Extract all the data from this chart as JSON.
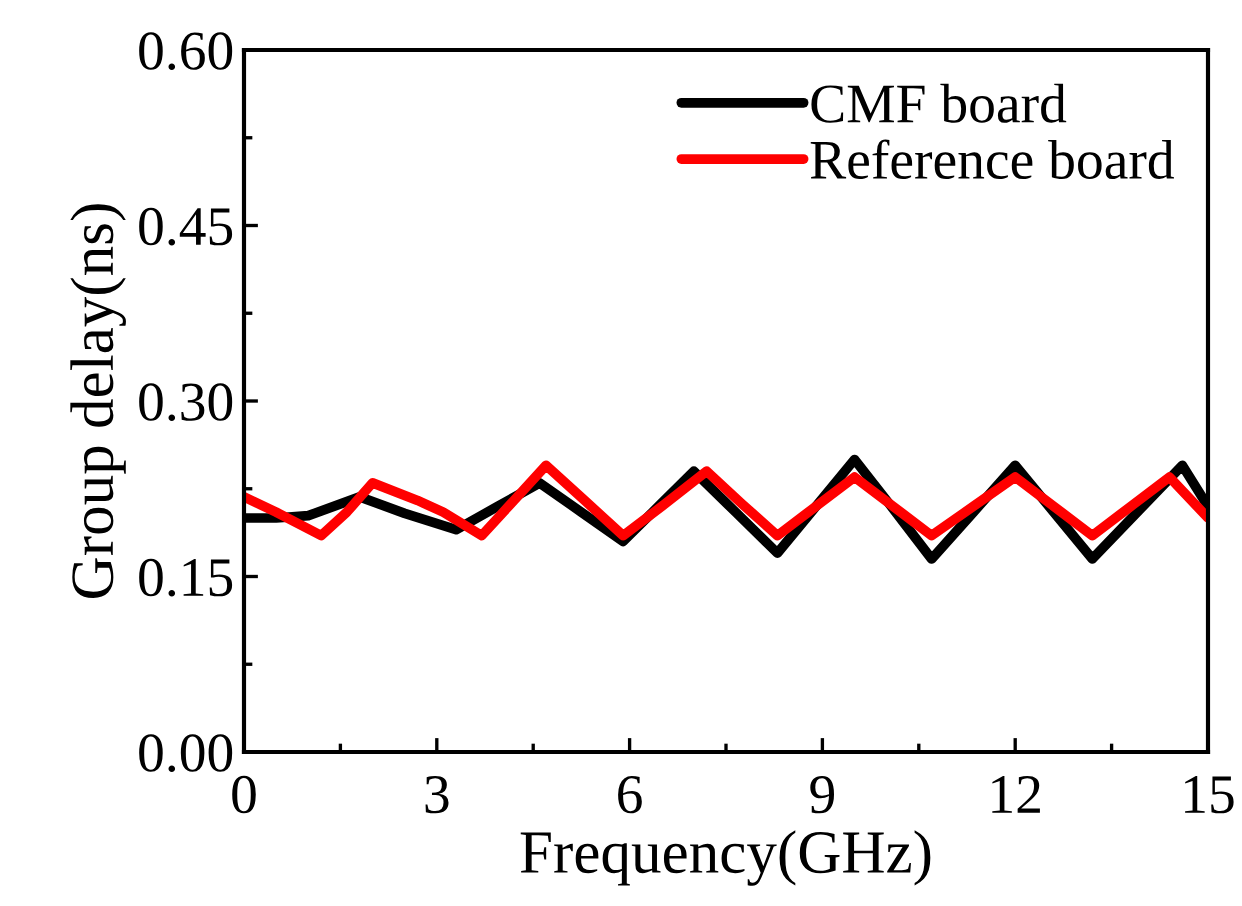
{
  "chart_data": {
    "type": "line",
    "xlabel": "Frequency(GHz)",
    "ylabel": "Group delay(ns)",
    "xlim": [
      0,
      15
    ],
    "xticks": [
      0,
      3,
      6,
      9,
      12,
      15
    ],
    "ylim": [
      0,
      0.6
    ],
    "yticks": [
      {
        "value": 0,
        "label": "0.00"
      },
      {
        "value": 0.15,
        "label": "0.15"
      },
      {
        "value": 0.3,
        "label": "0.30"
      },
      {
        "value": 0.45,
        "label": "0.45"
      },
      {
        "value": 0.6,
        "label": "0.60"
      }
    ],
    "grid": false,
    "legend": "top right",
    "marker": "none",
    "line_style": "solid",
    "series": [
      {
        "name": "CMF board",
        "color": "#000000",
        "x": [
          0,
          0.5,
          1,
          1.8,
          2.5,
          3.3,
          3.95,
          4.6,
          5.25,
          5.9,
          6.45,
          7.0,
          7.65,
          8.3,
          8.9,
          9.5,
          10.1,
          10.7,
          11.35,
          12,
          12.6,
          13.2,
          13.9,
          14.6,
          15
        ],
        "values": [
          0.2,
          0.2,
          0.202,
          0.218,
          0.204,
          0.19,
          0.21,
          0.23,
          0.205,
          0.18,
          0.21,
          0.24,
          0.205,
          0.17,
          0.21,
          0.25,
          0.208,
          0.165,
          0.205,
          0.245,
          0.205,
          0.165,
          0.205,
          0.245,
          0.21
        ]
      },
      {
        "name": "Reference board",
        "color": "#ff0000",
        "x": [
          0,
          0.5,
          1.2,
          1.6,
          2.0,
          2.7,
          3.1,
          3.7,
          4.2,
          4.7,
          5.3,
          5.9,
          6.55,
          7.2,
          7.75,
          8.3,
          8.9,
          9.5,
          10.1,
          10.7,
          11.35,
          12,
          12.6,
          13.2,
          13.8,
          14.4,
          15
        ],
        "values": [
          0.218,
          0.205,
          0.185,
          0.205,
          0.23,
          0.215,
          0.205,
          0.185,
          0.215,
          0.245,
          0.215,
          0.185,
          0.212,
          0.24,
          0.212,
          0.185,
          0.21,
          0.235,
          0.21,
          0.185,
          0.21,
          0.235,
          0.21,
          0.185,
          0.21,
          0.235,
          0.2
        ]
      }
    ]
  }
}
